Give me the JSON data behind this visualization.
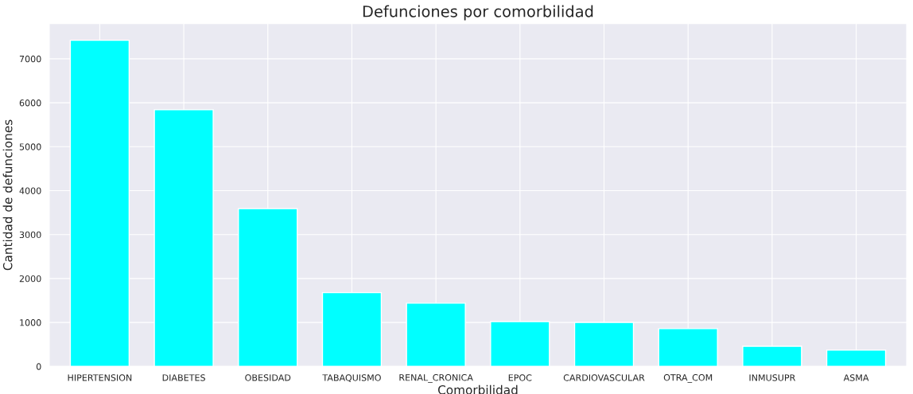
{
  "chart_data": {
    "type": "bar",
    "title": "Defunciones por comorbilidad",
    "xlabel": "Comorbilidad",
    "ylabel": "Cantidad de defunciones",
    "categories": [
      "HIPERTENSION",
      "DIABETES",
      "OBESIDAD",
      "TABAQUISMO",
      "RENAL_CRONICA",
      "EPOC",
      "CARDIOVASCULAR",
      "OTRA_COM",
      "INMUSUPR",
      "ASMA"
    ],
    "values": [
      7420,
      5840,
      3590,
      1680,
      1440,
      1020,
      1000,
      860,
      460,
      370
    ],
    "color": "#00ffff",
    "ylim": [
      0,
      7800
    ],
    "yticks": [
      0,
      1000,
      2000,
      3000,
      4000,
      5000,
      6000,
      7000
    ],
    "grid": true,
    "legend": false
  }
}
